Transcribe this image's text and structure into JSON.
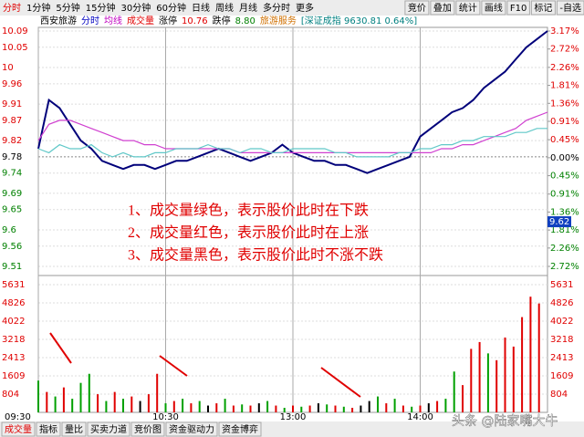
{
  "toolbar": {
    "tabs": [
      "分时",
      "1分钟",
      "5分钟",
      "15分钟",
      "30分钟",
      "60分钟",
      "日线",
      "周线",
      "月线",
      "多分时",
      "更多"
    ],
    "buttons": [
      "竞价",
      "叠加",
      "统计",
      "画线",
      "F10",
      "标记",
      "-自选"
    ]
  },
  "info_bar": [
    {
      "text": "西安旅游",
      "color": "#000000"
    },
    {
      "text": "分时",
      "color": "#0000c0"
    },
    {
      "text": "均线",
      "color": "#c000c0"
    },
    {
      "text": "成交量",
      "color": "#e00000"
    },
    {
      "text": "涨停",
      "color": "#000000"
    },
    {
      "text": "10.76",
      "color": "#e00000"
    },
    {
      "text": "跌停",
      "color": "#000000"
    },
    {
      "text": "8.80",
      "color": "#008000"
    },
    {
      "text": "旅游服务",
      "color": "#d07000"
    },
    {
      "text": "[深证成指 9630.81 0.64%]",
      "color": "#008080"
    }
  ],
  "chart_data": [
    {
      "type": "line",
      "x": [
        0,
        5,
        10,
        15,
        20,
        25,
        30,
        35,
        40,
        45,
        50,
        55,
        60,
        65,
        70,
        75,
        80,
        85,
        90,
        95,
        100,
        105,
        110,
        115,
        120,
        125,
        130,
        135,
        140,
        145,
        150,
        155,
        160,
        165,
        170,
        175,
        180,
        185,
        190,
        195,
        200,
        205,
        210,
        215,
        220,
        225,
        230,
        235,
        240
      ],
      "xlim": [
        0,
        240
      ],
      "ylim": [
        9.51,
        10.09
      ],
      "yticks": [
        10.09,
        10.05,
        10.0,
        9.96,
        9.91,
        9.87,
        9.82,
        9.78,
        9.74,
        9.69,
        9.65,
        9.6,
        9.56,
        9.51
      ],
      "y2lim": [
        -2.72,
        3.17
      ],
      "y2ticks": [
        {
          "value": 3.17,
          "label": "3.17%"
        },
        {
          "value": 2.72,
          "label": "2.72%"
        },
        {
          "value": 2.26,
          "label": "2.26%"
        },
        {
          "value": 1.81,
          "label": "1.81%"
        },
        {
          "value": 1.36,
          "label": "1.36%"
        },
        {
          "value": 0.91,
          "label": "0.91%"
        },
        {
          "value": 0.45,
          "label": "0.45%"
        },
        {
          "value": 0,
          "label": "0.00%"
        },
        {
          "value": -0.45,
          "label": "0.45%"
        },
        {
          "value": -0.91,
          "label": "0.91%"
        },
        {
          "value": -1.36,
          "label": "1.36%"
        },
        {
          "value": -1.81,
          "label": "1.81%"
        },
        {
          "value": -2.26,
          "label": "2.26%"
        },
        {
          "value": -2.72,
          "label": "2.72%"
        }
      ],
      "cursor_price": 9.62,
      "series": [
        {
          "color": "#00007a",
          "values": [
            9.8,
            9.92,
            9.9,
            9.86,
            9.82,
            9.8,
            9.77,
            9.76,
            9.75,
            9.76,
            9.76,
            9.75,
            9.76,
            9.77,
            9.77,
            9.78,
            9.79,
            9.8,
            9.79,
            9.78,
            9.77,
            9.78,
            9.79,
            9.81,
            9.79,
            9.78,
            9.77,
            9.77,
            9.76,
            9.76,
            9.75,
            9.74,
            9.75,
            9.76,
            9.77,
            9.78,
            9.83,
            9.85,
            9.87,
            9.89,
            9.9,
            9.92,
            9.95,
            9.97,
            9.99,
            10.02,
            10.05,
            10.07,
            10.09
          ]
        },
        {
          "color": "#d040d0",
          "values": [
            9.82,
            9.86,
            9.87,
            9.87,
            9.86,
            9.85,
            9.84,
            9.83,
            9.82,
            9.82,
            9.81,
            9.81,
            9.8,
            9.8,
            9.8,
            9.8,
            9.8,
            9.8,
            9.8,
            9.79,
            9.79,
            9.79,
            9.79,
            9.79,
            9.79,
            9.79,
            9.79,
            9.79,
            9.79,
            9.79,
            9.79,
            9.79,
            9.79,
            9.79,
            9.79,
            9.79,
            9.79,
            9.79,
            9.8,
            9.8,
            9.81,
            9.81,
            9.82,
            9.83,
            9.84,
            9.85,
            9.87,
            9.88,
            9.89
          ]
        },
        {
          "color": "#60c8c8",
          "values": [
            9.8,
            9.79,
            9.81,
            9.8,
            9.8,
            9.81,
            9.79,
            9.78,
            9.79,
            9.78,
            9.78,
            9.79,
            9.79,
            9.8,
            9.8,
            9.8,
            9.81,
            9.8,
            9.8,
            9.79,
            9.8,
            9.8,
            9.79,
            9.79,
            9.8,
            9.8,
            9.8,
            9.8,
            9.79,
            9.79,
            9.78,
            9.78,
            9.78,
            9.78,
            9.79,
            9.79,
            9.8,
            9.8,
            9.81,
            9.81,
            9.82,
            9.82,
            9.83,
            9.83,
            9.83,
            9.84,
            9.84,
            9.85,
            9.85
          ]
        }
      ],
      "annotations": [
        "1、成交量绿色，表示股价此时在下跌",
        "2、成交量红色，表示股价此时在上涨",
        "3、成交量黑色，表示股价此时不涨不跌"
      ]
    },
    {
      "type": "bar",
      "x": [
        0,
        4,
        8,
        12,
        16,
        20,
        24,
        28,
        32,
        36,
        40,
        44,
        48,
        52,
        56,
        60,
        64,
        68,
        72,
        76,
        80,
        84,
        88,
        92,
        96,
        100,
        104,
        108,
        112,
        116,
        120,
        124,
        128,
        132,
        136,
        140,
        144,
        148,
        152,
        156,
        160,
        164,
        168,
        172,
        176,
        180,
        184,
        188,
        192,
        196,
        200,
        204,
        208,
        212,
        216,
        220,
        224,
        228,
        232,
        236
      ],
      "xlim": [
        0,
        240
      ],
      "xticks": [
        {
          "value": 0,
          "label": "09:30"
        },
        {
          "value": 60,
          "label": "10:30"
        },
        {
          "value": 120,
          "label": "13:00"
        },
        {
          "value": 180,
          "label": "14:00"
        }
      ],
      "ylim": [
        0,
        5631
      ],
      "yticks": [
        5631,
        4826,
        4022,
        3218,
        2413,
        1609,
        804
      ],
      "values": [
        1400,
        900,
        700,
        1100,
        600,
        1300,
        1700,
        800,
        500,
        900,
        600,
        700,
        500,
        800,
        1700,
        400,
        500,
        600,
        400,
        500,
        300,
        400,
        600,
        300,
        350,
        300,
        400,
        500,
        300,
        200,
        300,
        250,
        300,
        400,
        350,
        300,
        250,
        200,
        300,
        500,
        700,
        400,
        600,
        300,
        250,
        300,
        400,
        500,
        600,
        1800,
        1200,
        2800,
        3100,
        2600,
        2300,
        3300,
        2900,
        4200,
        5100,
        4800
      ],
      "colors": [
        "#00a000",
        "#e00000",
        "#00a000",
        "#e00000",
        "#00a000",
        "#00a000",
        "#00a000",
        "#e00000",
        "#00a000",
        "#e00000",
        "#00a000",
        "#e00000",
        "#000000",
        "#e00000",
        "#e00000",
        "#00a000",
        "#e00000",
        "#00a000",
        "#e00000",
        "#00a000",
        "#000000",
        "#e00000",
        "#00a000",
        "#e00000",
        "#00a000",
        "#e00000",
        "#000000",
        "#00a000",
        "#e00000",
        "#00a000",
        "#e00000",
        "#00a000",
        "#e00000",
        "#000000",
        "#00a000",
        "#e00000",
        "#00a000",
        "#e00000",
        "#000000",
        "#000000",
        "#00a000",
        "#e00000",
        "#00a000",
        "#e00000",
        "#00a000",
        "#e00000",
        "#000000",
        "#e00000",
        "#00a000",
        "#00a000",
        "#e00000",
        "#e00000",
        "#e00000",
        "#00a000",
        "#e00000",
        "#e00000",
        "#e00000",
        "#e00000",
        "#e00000",
        "#e00000"
      ]
    }
  ],
  "bottom_tabs": [
    "成交量",
    "指标",
    "量比",
    "买卖力道",
    "竞价图",
    "资金驱动力",
    "资金博弈"
  ],
  "watermark": "头条 @陆家嘴大牛"
}
